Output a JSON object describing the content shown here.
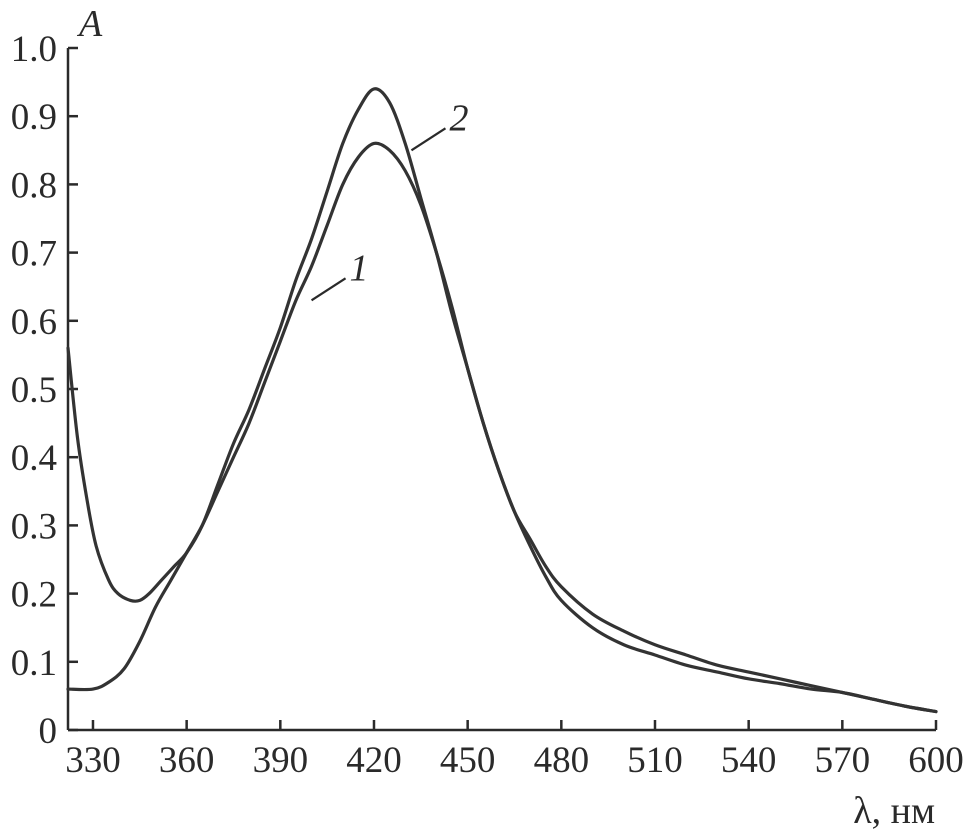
{
  "chart_data": {
    "type": "line",
    "title": "",
    "xlabel": "λ, нм",
    "ylabel": "A",
    "xlim": [
      322,
      600
    ],
    "ylim": [
      0,
      1.0
    ],
    "x_ticks": [
      330,
      360,
      390,
      420,
      450,
      480,
      510,
      540,
      570,
      600
    ],
    "y_ticks": [
      {
        "value": 0,
        "label": "0"
      },
      {
        "value": 0.1,
        "label": "0.1"
      },
      {
        "value": 0.2,
        "label": "0.2"
      },
      {
        "value": 0.3,
        "label": "0.3"
      },
      {
        "value": 0.4,
        "label": "0.4"
      },
      {
        "value": 0.5,
        "label": "0.5"
      },
      {
        "value": 0.6,
        "label": "0.6"
      },
      {
        "value": 0.7,
        "label": "0.7"
      },
      {
        "value": 0.8,
        "label": "0.8"
      },
      {
        "value": 0.9,
        "label": "0.9"
      },
      {
        "value": 1.0,
        "label": "1.0"
      }
    ],
    "grid": false,
    "legend": "none",
    "series": [
      {
        "label": "1",
        "label_anchor": [
          400,
          0.63
        ],
        "points": [
          [
            322,
            0.06
          ],
          [
            330,
            0.06
          ],
          [
            335,
            0.07
          ],
          [
            340,
            0.09
          ],
          [
            345,
            0.13
          ],
          [
            350,
            0.18
          ],
          [
            355,
            0.22
          ],
          [
            360,
            0.26
          ],
          [
            365,
            0.3
          ],
          [
            370,
            0.35
          ],
          [
            375,
            0.4
          ],
          [
            380,
            0.45
          ],
          [
            385,
            0.51
          ],
          [
            390,
            0.57
          ],
          [
            395,
            0.63
          ],
          [
            400,
            0.68
          ],
          [
            405,
            0.74
          ],
          [
            410,
            0.8
          ],
          [
            415,
            0.84
          ],
          [
            420,
            0.86
          ],
          [
            425,
            0.85
          ],
          [
            430,
            0.82
          ],
          [
            435,
            0.77
          ],
          [
            440,
            0.7
          ],
          [
            445,
            0.62
          ],
          [
            450,
            0.53
          ],
          [
            455,
            0.45
          ],
          [
            460,
            0.38
          ],
          [
            465,
            0.32
          ],
          [
            470,
            0.27
          ],
          [
            475,
            0.225
          ],
          [
            480,
            0.19
          ],
          [
            490,
            0.15
          ],
          [
            500,
            0.125
          ],
          [
            510,
            0.11
          ],
          [
            520,
            0.095
          ],
          [
            530,
            0.085
          ],
          [
            540,
            0.075
          ],
          [
            550,
            0.068
          ],
          [
            560,
            0.06
          ],
          [
            570,
            0.055
          ],
          [
            580,
            0.045
          ],
          [
            590,
            0.035
          ],
          [
            600,
            0.027
          ]
        ]
      },
      {
        "label": "2",
        "label_anchor": [
          432,
          0.85
        ],
        "points": [
          [
            322,
            0.56
          ],
          [
            325,
            0.43
          ],
          [
            328,
            0.34
          ],
          [
            331,
            0.27
          ],
          [
            335,
            0.22
          ],
          [
            338,
            0.2
          ],
          [
            342,
            0.19
          ],
          [
            345,
            0.19
          ],
          [
            348,
            0.2
          ],
          [
            352,
            0.22
          ],
          [
            356,
            0.24
          ],
          [
            360,
            0.26
          ],
          [
            365,
            0.3
          ],
          [
            370,
            0.36
          ],
          [
            375,
            0.42
          ],
          [
            380,
            0.47
          ],
          [
            385,
            0.53
          ],
          [
            390,
            0.59
          ],
          [
            395,
            0.66
          ],
          [
            400,
            0.72
          ],
          [
            405,
            0.79
          ],
          [
            410,
            0.86
          ],
          [
            415,
            0.91
          ],
          [
            420,
            0.94
          ],
          [
            425,
            0.92
          ],
          [
            430,
            0.86
          ],
          [
            435,
            0.78
          ],
          [
            440,
            0.7
          ],
          [
            445,
            0.61
          ],
          [
            450,
            0.53
          ],
          [
            455,
            0.45
          ],
          [
            460,
            0.38
          ],
          [
            465,
            0.32
          ],
          [
            470,
            0.28
          ],
          [
            475,
            0.24
          ],
          [
            480,
            0.21
          ],
          [
            490,
            0.17
          ],
          [
            500,
            0.145
          ],
          [
            510,
            0.125
          ],
          [
            520,
            0.11
          ],
          [
            530,
            0.095
          ],
          [
            540,
            0.085
          ],
          [
            550,
            0.075
          ],
          [
            560,
            0.065
          ],
          [
            570,
            0.055
          ],
          [
            580,
            0.045
          ],
          [
            590,
            0.035
          ],
          [
            600,
            0.027
          ]
        ]
      }
    ]
  }
}
